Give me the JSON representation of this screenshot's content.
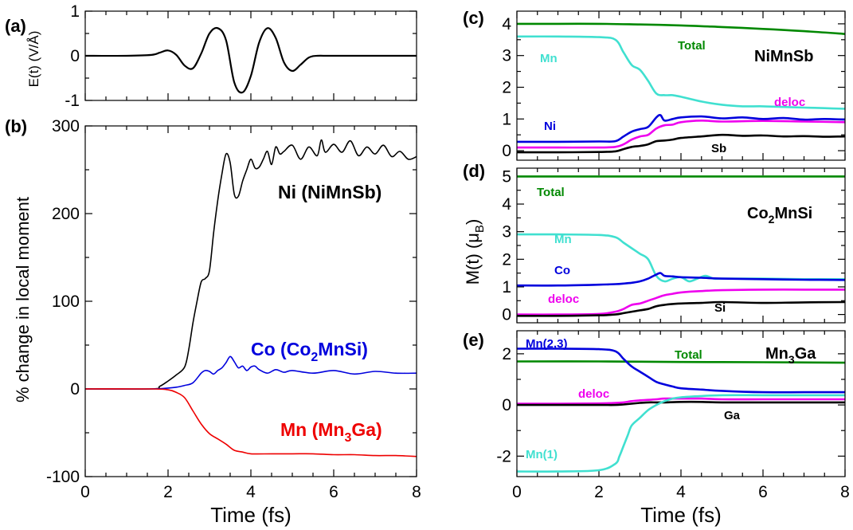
{
  "chart_data": [
    {
      "id": "a",
      "type": "line",
      "panel_label": "(a)",
      "ylabel": "E(t) (V/Å)",
      "xlim": [
        0,
        8
      ],
      "ylim": [
        -1,
        1
      ],
      "yticks": [
        -1,
        0,
        1
      ],
      "series": [
        {
          "color": "#000000",
          "x": [
            0,
            1.0,
            1.6,
            1.8,
            2.0,
            2.2,
            2.4,
            2.6,
            2.8,
            3.0,
            3.2,
            3.4,
            3.6,
            3.8,
            4.0,
            4.2,
            4.4,
            4.6,
            4.8,
            5.0,
            5.2,
            5.4,
            5.6,
            6.0,
            8.0
          ],
          "y": [
            0,
            0,
            0.02,
            0.07,
            0.12,
            0.02,
            -0.22,
            -0.28,
            0.05,
            0.5,
            0.62,
            0.35,
            -0.6,
            -0.82,
            -0.45,
            0.3,
            0.62,
            0.4,
            -0.15,
            -0.34,
            -0.2,
            -0.04,
            0,
            0,
            0
          ]
        }
      ]
    },
    {
      "id": "b",
      "type": "line",
      "panel_label": "(b)",
      "xlabel": "Time (fs)",
      "ylabel": "% change in local moment",
      "xlim": [
        0,
        8
      ],
      "ylim": [
        -100,
        300
      ],
      "xticks": [
        0,
        2,
        4,
        6,
        8
      ],
      "yticks": [
        -100,
        0,
        100,
        200,
        300
      ],
      "series": [
        {
          "name": "Ni (NiMnSb)",
          "label_main": "Ni (NiMnSb)",
          "color": "#000000",
          "x": [
            0,
            1.6,
            1.8,
            2.0,
            2.2,
            2.4,
            2.5,
            2.6,
            2.7,
            2.8,
            2.9,
            3.0,
            3.1,
            3.2,
            3.3,
            3.4,
            3.5,
            3.6,
            3.7,
            3.8,
            3.9,
            4.0,
            4.1,
            4.2,
            4.3,
            4.4,
            4.5,
            4.6,
            4.7,
            4.8,
            5.0,
            5.2,
            5.4,
            5.6,
            5.7,
            5.8,
            6.0,
            6.2,
            6.4,
            6.6,
            6.8,
            7.0,
            7.2,
            7.4,
            7.6,
            7.8,
            8.0
          ],
          "y": [
            0,
            0,
            3,
            9,
            16,
            25,
            45,
            75,
            100,
            122,
            126,
            135,
            178,
            215,
            245,
            268,
            258,
            222,
            220,
            237,
            250,
            262,
            252,
            253,
            262,
            271,
            256,
            276,
            268,
            271,
            278,
            262,
            276,
            266,
            284,
            270,
            279,
            270,
            283,
            266,
            276,
            268,
            278,
            265,
            271,
            262,
            265
          ]
        },
        {
          "name": "Co (Co2MnSi)",
          "label_main": "Co (Co",
          "label_sub": "2",
          "label_end": "MnSi)",
          "color": "#0000dd",
          "x": [
            0,
            1.6,
            2.0,
            2.2,
            2.4,
            2.6,
            2.8,
            2.9,
            3.0,
            3.1,
            3.2,
            3.3,
            3.4,
            3.5,
            3.6,
            3.7,
            3.8,
            3.9,
            4.0,
            4.1,
            4.2,
            4.4,
            4.6,
            4.8,
            5.0,
            5.5,
            6.0,
            6.5,
            7.0,
            7.5,
            8.0
          ],
          "y": [
            0,
            0,
            1,
            2,
            4,
            7,
            18,
            21,
            20,
            17,
            21,
            24,
            30,
            37,
            31,
            24,
            26,
            21,
            25,
            26,
            22,
            18,
            22,
            19,
            21,
            18,
            21,
            17,
            20,
            18,
            18
          ]
        },
        {
          "name": "Mn (Mn3Ga)",
          "label_main": "Mn (Mn",
          "label_sub": "3",
          "label_end": "Ga)",
          "color": "#ee0000",
          "x": [
            0,
            1.6,
            2.0,
            2.2,
            2.4,
            2.6,
            2.8,
            3.0,
            3.2,
            3.4,
            3.6,
            3.8,
            4.0,
            4.5,
            5.0,
            5.5,
            6.0,
            6.5,
            7.0,
            7.5,
            8.0
          ],
          "y": [
            0,
            0,
            -1,
            -4,
            -10,
            -25,
            -40,
            -51,
            -57,
            -63,
            -70,
            -72,
            -74,
            -74,
            -74,
            -74,
            -75,
            -75,
            -76,
            -76,
            -77
          ]
        }
      ]
    },
    {
      "id": "c",
      "type": "line",
      "panel_label": "(c)",
      "system_name": "NiMnSb",
      "xlim": [
        0,
        8
      ],
      "ylim": [
        -0.3,
        4.4
      ],
      "yticks": [
        0,
        1,
        2,
        3,
        4
      ],
      "series": [
        {
          "name": "Total",
          "color": "#008800",
          "x": [
            0,
            1,
            2,
            3,
            4,
            5,
            6,
            7,
            8
          ],
          "y": [
            4.0,
            4.0,
            4.0,
            3.98,
            3.95,
            3.9,
            3.84,
            3.77,
            3.68
          ]
        },
        {
          "name": "Mn",
          "color": "#40e0d0",
          "x": [
            0,
            1,
            2,
            2.4,
            2.6,
            2.8,
            3.0,
            3.2,
            3.4,
            3.6,
            3.8,
            4.0,
            4.5,
            5.0,
            5.5,
            6.0,
            6.5,
            7.0,
            7.5,
            8.0
          ],
          "y": [
            3.6,
            3.6,
            3.58,
            3.5,
            3.1,
            2.7,
            2.55,
            2.2,
            1.8,
            1.75,
            1.75,
            1.7,
            1.55,
            1.45,
            1.4,
            1.4,
            1.38,
            1.36,
            1.34,
            1.32
          ]
        },
        {
          "name": "deloc",
          "color": "#ee00ee",
          "x": [
            0,
            1,
            2,
            2.4,
            2.6,
            2.8,
            3.0,
            3.2,
            3.4,
            3.6,
            3.8,
            4.0,
            4.5,
            5.0,
            6.0,
            7.0,
            8.0
          ],
          "y": [
            0.1,
            0.1,
            0.1,
            0.12,
            0.2,
            0.35,
            0.45,
            0.5,
            0.7,
            0.8,
            0.82,
            0.9,
            0.95,
            0.92,
            0.94,
            0.92,
            0.9
          ]
        },
        {
          "name": "Ni",
          "color": "#0000dd",
          "x": [
            0,
            1,
            2,
            2.4,
            2.6,
            2.8,
            3.0,
            3.2,
            3.4,
            3.5,
            3.6,
            3.8,
            4.0,
            4.5,
            5.0,
            5.5,
            6.0,
            6.5,
            7.0,
            7.5,
            8.0
          ],
          "y": [
            0.28,
            0.28,
            0.29,
            0.3,
            0.45,
            0.6,
            0.68,
            0.75,
            1.05,
            1.12,
            0.95,
            1.0,
            1.05,
            1.08,
            1.02,
            1.05,
            1.0,
            1.03,
            0.98,
            1.0,
            0.98
          ]
        },
        {
          "name": "Sb",
          "color": "#000000",
          "x": [
            0,
            1,
            2,
            2.4,
            2.6,
            2.8,
            3.0,
            3.2,
            3.4,
            3.6,
            3.8,
            4.0,
            4.5,
            5.0,
            5.5,
            6.0,
            6.5,
            7.0,
            7.5,
            8.0
          ],
          "y": [
            -0.05,
            -0.05,
            -0.04,
            -0.02,
            0.05,
            0.12,
            0.15,
            0.2,
            0.3,
            0.32,
            0.35,
            0.4,
            0.45,
            0.5,
            0.47,
            0.48,
            0.45,
            0.46,
            0.44,
            0.45
          ]
        }
      ]
    },
    {
      "id": "d",
      "type": "line",
      "panel_label": "(d)",
      "system_name": "Co",
      "system_sub": "2",
      "system_end": "MnSi",
      "ylabel_main": "M(t) (μ",
      "ylabel_sub": "B",
      "ylabel_end": ")",
      "xlim": [
        0,
        8
      ],
      "ylim": [
        -0.3,
        5.3
      ],
      "yticks": [
        0,
        1,
        2,
        3,
        4,
        5
      ],
      "series": [
        {
          "name": "Total",
          "color": "#008800",
          "x": [
            0,
            8
          ],
          "y": [
            5.0,
            5.0
          ]
        },
        {
          "name": "Mn",
          "color": "#40e0d0",
          "x": [
            0,
            1,
            2,
            2.4,
            2.6,
            2.8,
            3.0,
            3.2,
            3.4,
            3.6,
            3.8,
            4.0,
            4.2,
            4.4,
            4.6,
            4.8,
            5.0,
            6.0,
            7.0,
            8.0
          ],
          "y": [
            2.9,
            2.9,
            2.88,
            2.8,
            2.6,
            2.4,
            2.2,
            2.0,
            1.4,
            1.2,
            1.3,
            1.35,
            1.2,
            1.3,
            1.4,
            1.3,
            1.3,
            1.3,
            1.28,
            1.28
          ]
        },
        {
          "name": "Co",
          "color": "#0000dd",
          "x": [
            0,
            1,
            2,
            2.4,
            2.6,
            2.8,
            3.0,
            3.2,
            3.4,
            3.5,
            3.6,
            3.8,
            4.0,
            4.5,
            5.0,
            6.0,
            7.0,
            8.0
          ],
          "y": [
            1.05,
            1.05,
            1.08,
            1.1,
            1.12,
            1.15,
            1.2,
            1.3,
            1.45,
            1.5,
            1.4,
            1.38,
            1.35,
            1.33,
            1.3,
            1.28,
            1.26,
            1.25
          ]
        },
        {
          "name": "deloc",
          "color": "#ee00ee",
          "x": [
            0,
            1,
            2,
            2.4,
            2.6,
            2.8,
            3.0,
            3.2,
            3.4,
            3.6,
            3.8,
            4.0,
            4.5,
            5.0,
            6.0,
            7.0,
            8.0
          ],
          "y": [
            0.0,
            0.0,
            0.02,
            0.1,
            0.2,
            0.35,
            0.4,
            0.5,
            0.6,
            0.7,
            0.75,
            0.8,
            0.85,
            0.88,
            0.9,
            0.9,
            0.9
          ]
        },
        {
          "name": "Si",
          "color": "#000000",
          "x": [
            0,
            1,
            2,
            2.4,
            2.6,
            2.8,
            3.0,
            3.2,
            3.4,
            3.6,
            3.8,
            4.0,
            4.5,
            5.0,
            6.0,
            7.0,
            8.0
          ],
          "y": [
            -0.05,
            -0.05,
            -0.03,
            0.0,
            0.05,
            0.1,
            0.15,
            0.2,
            0.3,
            0.35,
            0.38,
            0.4,
            0.42,
            0.45,
            0.42,
            0.44,
            0.45
          ]
        }
      ]
    },
    {
      "id": "e",
      "type": "line",
      "panel_label": "(e)",
      "system_name": "Mn",
      "system_sub": "3",
      "system_end": "Ga",
      "xlabel": "Time (fs)",
      "xlim": [
        0,
        8
      ],
      "ylim": [
        -2.8,
        2.9
      ],
      "xticks": [
        0,
        2,
        4,
        6,
        8
      ],
      "yticks": [
        -2,
        0,
        2
      ],
      "series": [
        {
          "name": "Total",
          "color": "#008800",
          "x": [
            0,
            2,
            4,
            6,
            8
          ],
          "y": [
            1.7,
            1.7,
            1.68,
            1.67,
            1.65
          ]
        },
        {
          "name": "Mn(2,3)",
          "color": "#0000dd",
          "x": [
            0,
            1,
            2,
            2.4,
            2.6,
            2.8,
            3.0,
            3.2,
            3.4,
            3.6,
            3.8,
            4.0,
            4.5,
            5.0,
            6.0,
            7.0,
            8.0
          ],
          "y": [
            2.2,
            2.2,
            2.18,
            2.1,
            1.8,
            1.5,
            1.3,
            1.1,
            0.9,
            0.8,
            0.72,
            0.65,
            0.6,
            0.55,
            0.5,
            0.5,
            0.5
          ]
        },
        {
          "name": "deloc",
          "color": "#ee00ee",
          "x": [
            0,
            1,
            2,
            2.4,
            2.6,
            2.8,
            3.0,
            3.2,
            3.4,
            3.6,
            4.0,
            4.5,
            5.0,
            6.0,
            7.0,
            8.0
          ],
          "y": [
            0.05,
            0.05,
            0.06,
            0.08,
            0.1,
            0.15,
            0.18,
            0.2,
            0.22,
            0.25,
            0.25,
            0.25,
            0.22,
            0.22,
            0.22,
            0.22
          ]
        },
        {
          "name": "Ga",
          "color": "#000000",
          "x": [
            0,
            1,
            2,
            2.4,
            2.6,
            2.8,
            3.0,
            3.2,
            3.4,
            3.6,
            4.0,
            4.5,
            5.0,
            6.0,
            7.0,
            8.0
          ],
          "y": [
            0,
            0,
            0,
            0,
            0.02,
            0.05,
            0.08,
            0.1,
            0.1,
            0.1,
            0.12,
            0.12,
            0.1,
            0.1,
            0.1,
            0.1
          ]
        },
        {
          "name": "Mn(1)",
          "color": "#40e0d0",
          "x": [
            0,
            1,
            2,
            2.4,
            2.5,
            2.6,
            2.7,
            2.8,
            3.0,
            3.2,
            3.4,
            3.6,
            3.8,
            4.0,
            4.5,
            5.0,
            6.0,
            7.0,
            8.0
          ],
          "y": [
            -2.6,
            -2.6,
            -2.55,
            -2.3,
            -2.0,
            -1.6,
            -1.2,
            -0.8,
            -0.5,
            -0.2,
            0.0,
            0.15,
            0.25,
            0.3,
            0.35,
            0.38,
            0.38,
            0.38,
            0.38
          ]
        }
      ]
    }
  ]
}
